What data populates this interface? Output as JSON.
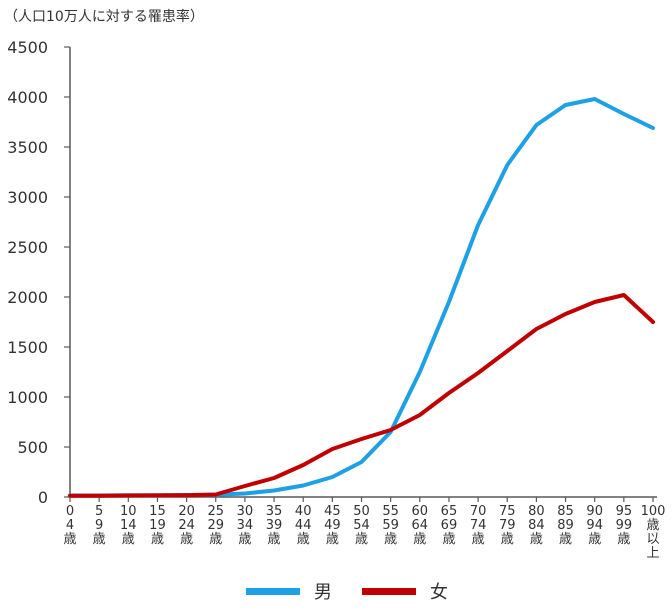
{
  "chart_data": {
    "type": "line",
    "unit_label": "（人口10万人に対する罹患率）",
    "categories": [
      "0-4歳",
      "5-9歳",
      "10-14歳",
      "15-19歳",
      "20-24歳",
      "25-29歳",
      "30-34歳",
      "35-39歳",
      "40-44歳",
      "45-49歳",
      "50-54歳",
      "55-59歳",
      "60-64歳",
      "65-69歳",
      "70-74歳",
      "75-79歳",
      "80-84歳",
      "85-89歳",
      "90-94歳",
      "95-99歳",
      "100歳以上"
    ],
    "x_ticks": [
      [
        "0",
        "4",
        "歳"
      ],
      [
        "5",
        "9",
        "歳"
      ],
      [
        "10",
        "14",
        "歳"
      ],
      [
        "15",
        "19",
        "歳"
      ],
      [
        "20",
        "24",
        "歳"
      ],
      [
        "25",
        "29",
        "歳"
      ],
      [
        "30",
        "34",
        "歳"
      ],
      [
        "35",
        "39",
        "歳"
      ],
      [
        "40",
        "44",
        "歳"
      ],
      [
        "45",
        "49",
        "歳"
      ],
      [
        "50",
        "54",
        "歳"
      ],
      [
        "55",
        "59",
        "歳"
      ],
      [
        "60",
        "64",
        "歳"
      ],
      [
        "65",
        "69",
        "歳"
      ],
      [
        "70",
        "74",
        "歳"
      ],
      [
        "75",
        "79",
        "歳"
      ],
      [
        "80",
        "84",
        "歳"
      ],
      [
        "85",
        "89",
        "歳"
      ],
      [
        "90",
        "94",
        "歳"
      ],
      [
        "95",
        "99",
        "歳"
      ],
      [
        "100",
        "歳",
        "以",
        "上"
      ]
    ],
    "y_ticks": [
      0,
      500,
      1000,
      1500,
      2000,
      2500,
      3000,
      3500,
      4000,
      4500
    ],
    "ylim": [
      0,
      4500
    ],
    "series": [
      {
        "name": "男",
        "color": "#1ea0e6",
        "values": [
          15,
          15,
          18,
          18,
          20,
          22,
          35,
          65,
          115,
          200,
          350,
          650,
          1250,
          1950,
          2720,
          3320,
          3720,
          3920,
          3980,
          3830,
          3690
        ]
      },
      {
        "name": "女",
        "color": "#c00000",
        "values": [
          12,
          12,
          15,
          16,
          18,
          25,
          110,
          190,
          320,
          480,
          580,
          670,
          820,
          1040,
          1240,
          1460,
          1680,
          1830,
          1950,
          2020,
          1750
        ]
      }
    ],
    "legend_position": "bottom"
  }
}
